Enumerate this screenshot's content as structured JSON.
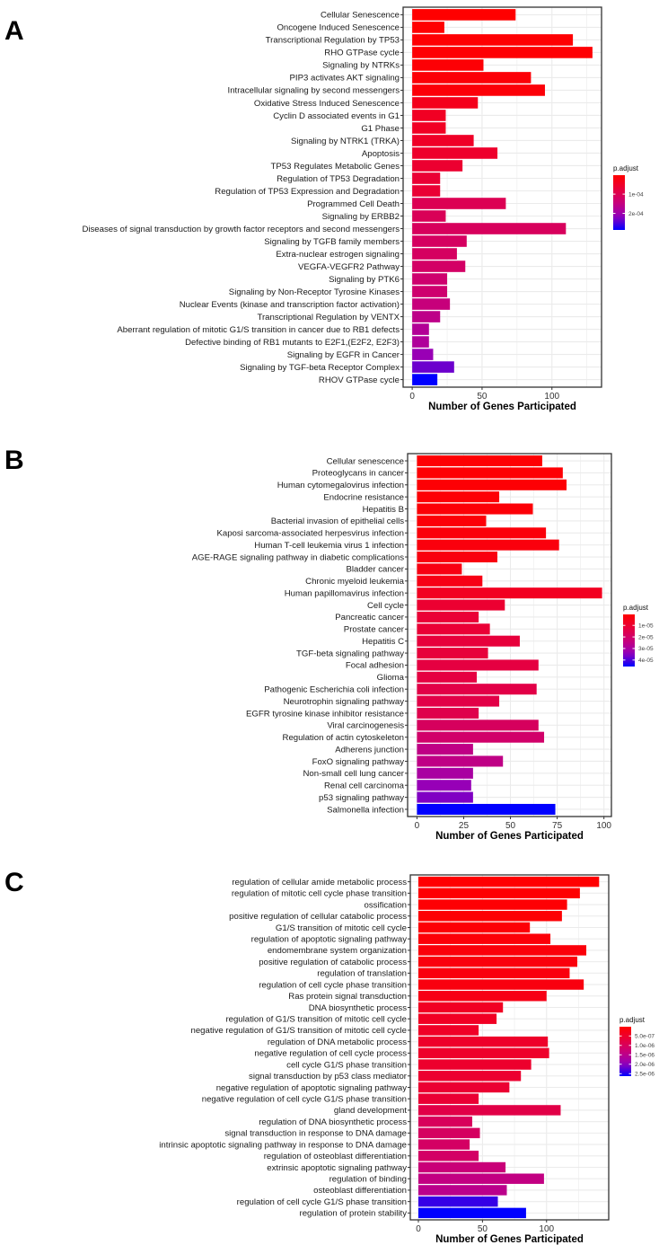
{
  "chart_data": [
    {
      "panel": "A",
      "type": "bar",
      "orientation": "horizontal",
      "xlabel": "Number of Genes Participated",
      "xticks": [
        0,
        50,
        100
      ],
      "xlim": [
        -6.5,
        135.5
      ],
      "legend": {
        "title": "p.adjust",
        "ticks": [
          0.0001,
          0.0002
        ],
        "tick_labels": [
          "1e-04",
          "2e-04"
        ],
        "range": [
          1.6e-06,
          0.000286
        ],
        "placement": "right"
      },
      "categories": [
        "Cellular Senescence",
        "Oncogene Induced Senescence",
        "Transcriptional Regulation by TP53",
        "RHO GTPase cycle",
        "Signaling by NTRKs",
        "PIP3 activates AKT signaling",
        "Intracellular signaling by second messengers",
        "Oxidative Stress Induced Senescence",
        "Cyclin D associated events in G1",
        "G1 Phase",
        "Signaling by NTRK1 (TRKA)",
        "Apoptosis",
        "TP53 Regulates Metabolic Genes",
        "Regulation of TP53 Degradation",
        "Regulation of TP53 Expression and Degradation",
        "Programmed Cell Death",
        "Signaling by ERBB2",
        "Diseases of signal transduction by growth factor receptors and second messengers",
        "Signaling by TGFB family members",
        "Extra-nuclear estrogen signaling",
        "VEGFA-VEGFR2 Pathway",
        "Signaling by PTK6",
        "Signaling by Non-Receptor Tyrosine Kinases",
        "Nuclear Events (kinase and transcription factor activation)",
        "Transcriptional Regulation by VENTX",
        "Aberrant regulation of mitotic G1/S transition in cancer due to RB1 defects",
        "Defective binding of RB1 mutants to E2F1,(E2F2, E2F3)",
        "Signaling by EGFR in Cancer",
        "Signaling by TGF-beta Receptor Complex",
        "RHOV GTPase cycle"
      ],
      "values": [
        74,
        23,
        115,
        129,
        51,
        85,
        95,
        47,
        24,
        24,
        44,
        61,
        36,
        20,
        20,
        67,
        24,
        110,
        39,
        32,
        38,
        25,
        25,
        27,
        20,
        12,
        12,
        15,
        30,
        18
      ],
      "p_adjust": [
        2e-06,
        3e-06,
        5e-06,
        6e-06,
        8e-06,
        1e-05,
        1.2e-05,
        3.5e-05,
        4.5e-05,
        4.5e-05,
        5e-05,
        5.5e-05,
        6e-05,
        6.5e-05,
        6.5e-05,
        0.0001,
        0.000105,
        0.00011,
        0.000115,
        0.000115,
        0.00012,
        0.00013,
        0.00013,
        0.000145,
        0.00016,
        0.000175,
        0.00018,
        0.00021,
        0.000235,
        0.000286
      ]
    },
    {
      "panel": "B",
      "type": "bar",
      "orientation": "horizontal",
      "xlabel": "Number of Genes Participated",
      "xticks": [
        0,
        25,
        50,
        75,
        100
      ],
      "xlim": [
        -5,
        104
      ],
      "legend": {
        "title": "p.adjust",
        "ticks": [
          1e-05,
          2e-05,
          3e-05,
          4e-05
        ],
        "tick_labels": [
          "1e-05",
          "2e-05",
          "3e-05",
          "4e-05"
        ],
        "range": [
          5e-07,
          4.56e-05
        ],
        "placement": "right"
      },
      "categories": [
        "Cellular senescence",
        "Proteoglycans in cancer",
        "Human cytomegalovirus infection",
        "Endocrine resistance",
        "Hepatitis B",
        "Bacterial invasion of epithelial cells",
        "Kaposi sarcoma-associated herpesvirus infection",
        "Human T-cell leukemia virus 1 infection",
        "AGE-RAGE signaling pathway in diabetic complications",
        "Bladder cancer",
        "Chronic myeloid leukemia",
        "Human papillomavirus infection",
        "Cell cycle",
        "Pancreatic cancer",
        "Prostate cancer",
        "Hepatitis C",
        "TGF-beta signaling pathway",
        "Focal adhesion",
        "Glioma",
        "Pathogenic Escherichia coli infection",
        "Neurotrophin signaling pathway",
        "EGFR tyrosine kinase inhibitor resistance",
        "Viral carcinogenesis",
        "Regulation of actin cytoskeleton",
        "Adherens junction",
        "FoxO signaling pathway",
        "Non-small cell lung cancer",
        "Renal cell carcinoma",
        "p53 signaling pathway",
        "Salmonella infection"
      ],
      "values": [
        67,
        78,
        80,
        44,
        62,
        37,
        69,
        76,
        43,
        24,
        35,
        99,
        47,
        33,
        39,
        55,
        38,
        65,
        32,
        64,
        44,
        33,
        65,
        68,
        30,
        46,
        30,
        29,
        30,
        74
      ],
      "p_adjust": [
        1e-06,
        1.2e-06,
        1.4e-06,
        1.6e-06,
        1.8e-06,
        2e-06,
        2.5e-06,
        3e-06,
        3.5e-06,
        4e-06,
        4.5e-06,
        7e-06,
        1e-05,
        1.1e-05,
        1.1e-05,
        1.2e-05,
        1.2e-05,
        1.3e-05,
        1.3e-05,
        1.4e-05,
        1.4e-05,
        1.5e-05,
        1.8e-05,
        2e-05,
        2.5e-05,
        2.5e-05,
        3e-05,
        3.4e-05,
        3.6e-05,
        4.56e-05
      ]
    },
    {
      "panel": "C",
      "type": "bar",
      "orientation": "horizontal",
      "xlabel": "Number of Genes Participated",
      "xticks": [
        0,
        50,
        100
      ],
      "xlim": [
        -6.3,
        148.5
      ],
      "legend": {
        "title": "p.adjust",
        "ticks": [
          5e-07,
          1e-06,
          1.5e-06,
          2e-06,
          2.5e-06
        ],
        "tick_labels": [
          "5.0e-07",
          "1.0e-06",
          "1.5e-06",
          "2.0e-06",
          "2.5e-06"
        ],
        "range": [
          1e-08,
          2.63e-06
        ],
        "placement": "right"
      },
      "categories": [
        "regulation of cellular amide metabolic process",
        "regulation of mitotic cell cycle phase transition",
        "ossification",
        "positive regulation of cellular catabolic process",
        "G1/S transition of mitotic cell cycle",
        "regulation of apoptotic signaling pathway",
        "endomembrane system organization",
        "positive regulation of catabolic process",
        "regulation of translation",
        "regulation of cell cycle phase transition",
        "Ras protein signal transduction",
        "DNA biosynthetic process",
        "regulation of G1/S transition of mitotic cell cycle",
        "negative regulation of G1/S transition of mitotic cell cycle",
        "regulation of DNA metabolic process",
        "negative regulation of cell cycle process",
        "cell cycle G1/S phase transition",
        "signal transduction by p53 class mediator",
        "negative regulation of apoptotic signaling pathway",
        "negative regulation of cell cycle G1/S phase transition",
        "gland development",
        "regulation of DNA biosynthetic process",
        "signal transduction in response to DNA damage",
        "intrinsic apoptotic signaling pathway in response to DNA damage",
        "regulation of osteoblast differentiation",
        "extrinsic apoptotic signaling pathway",
        "regulation of binding",
        "osteoblast differentiation",
        "regulation of cell cycle G1/S phase transition",
        "regulation of protein stability"
      ],
      "values": [
        141,
        126,
        116,
        112,
        87,
        103,
        131,
        124,
        118,
        129,
        100,
        66,
        61,
        47,
        101,
        102,
        88,
        80,
        71,
        47,
        111,
        42,
        48,
        40,
        47,
        68,
        98,
        69,
        62,
        84
      ],
      "p_adjust": [
        2e-08,
        3e-08,
        5e-08,
        6e-08,
        8e-08,
        1e-07,
        1.2e-07,
        1.4e-07,
        1.6e-07,
        1.8e-07,
        2.5e-07,
        4e-07,
        4.2e-07,
        4.5e-07,
        4.8e-07,
        5e-07,
        5.2e-07,
        5.5e-07,
        5.8e-07,
        6e-07,
        8e-07,
        1e-06,
        1.05e-06,
        1.08e-06,
        1.1e-06,
        1.3e-06,
        1.4e-06,
        1.5e-06,
        2.4e-06,
        2.63e-06
      ]
    }
  ]
}
